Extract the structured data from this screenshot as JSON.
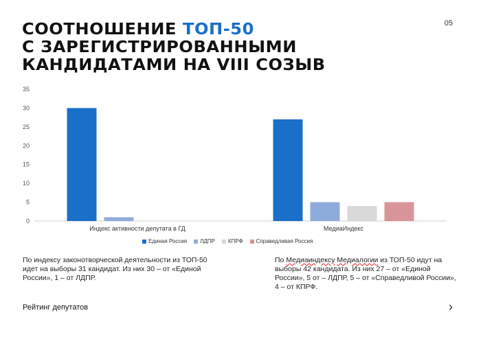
{
  "header": {
    "title_line1_a": "Соотношение ",
    "title_line1_b": "ТОП-50",
    "title_line2": "с зарегистрированными",
    "title_line3": "кандидатами на VIII созыв",
    "page_number": "05"
  },
  "chart_data": {
    "type": "bar",
    "categories": [
      "Индекс активности депутата в ГД",
      "МедиаИндекс"
    ],
    "series": [
      {
        "name": "Единая Россия",
        "color": "#1a6fc9",
        "values": [
          30,
          27
        ]
      },
      {
        "name": "ЛДПР",
        "color": "#8eacdb",
        "values": [
          1,
          5
        ]
      },
      {
        "name": "КПРФ",
        "color": "#d9d9d9",
        "values": [
          0,
          4
        ]
      },
      {
        "name": "Справедливая Россия",
        "color": "#d99499",
        "values": [
          0,
          5
        ]
      }
    ],
    "yticks": [
      "0",
      "5",
      "10",
      "15",
      "20",
      "25",
      "30",
      "35"
    ],
    "ylim": [
      0,
      35
    ],
    "grid": false,
    "legend": "bottom"
  },
  "notes": {
    "left": "По индексу законотворческой деятельности из ТОП-50 идет на выборы 31 кандидат. Из них 30 –  от «Единой России», 1 – от ЛДПР.",
    "right_a": "По ",
    "right_ul1": "Медиаиндексу",
    "right_sp": " ",
    "right_ul2": "Медиалогии",
    "right_b": " из ТОП-50 идут на выборы 42 кандидата. Из них 27 – от «Единой России», 5 от – ЛДПР, 5 – от «Справедливой России», 4 – от КПРФ."
  },
  "footer": {
    "label": "Рейтинг депутатов",
    "next_icon": "›"
  }
}
